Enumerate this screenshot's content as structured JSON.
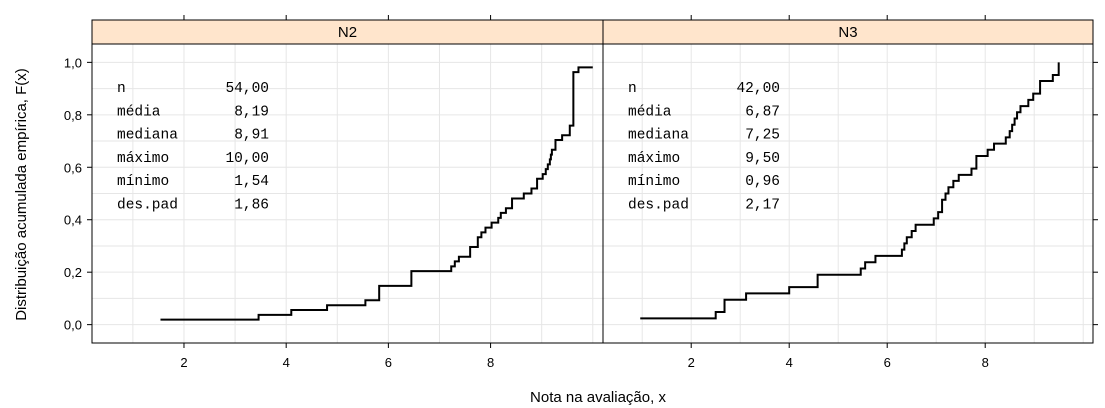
{
  "chart_data": {
    "type": "step",
    "xlabel": "Nota na avaliação, x",
    "ylabel": "Distribuição acumulada empírica, F(x)",
    "xlim": [
      0.2,
      10.2
    ],
    "ylim": [
      -0.07,
      1.07
    ],
    "xticks": [
      2,
      4,
      6,
      8
    ],
    "yticks": [
      0.0,
      0.2,
      0.4,
      0.6,
      0.8,
      1.0
    ],
    "ytick_labels": [
      "0,0",
      "0,2",
      "0,4",
      "0,6",
      "0,8",
      "1,0"
    ],
    "grid": true,
    "panels": [
      {
        "strip": "N2",
        "stats": [
          {
            "label": "n",
            "value": "54,00"
          },
          {
            "label": "média",
            "value": "8,19"
          },
          {
            "label": "mediana",
            "value": "8,91"
          },
          {
            "label": "máximo",
            "value": "10,00"
          },
          {
            "label": "mínimo",
            "value": "1,54"
          },
          {
            "label": "des.pad",
            "value": "1,86"
          }
        ],
        "steps": [
          [
            1.54,
            0.019
          ],
          [
            3.46,
            0.037
          ],
          [
            4.1,
            0.056
          ],
          [
            4.8,
            0.074
          ],
          [
            5.55,
            0.093
          ],
          [
            5.82,
            0.148
          ],
          [
            6.45,
            0.204
          ],
          [
            7.23,
            0.222
          ],
          [
            7.3,
            0.241
          ],
          [
            7.38,
            0.259
          ],
          [
            7.6,
            0.296
          ],
          [
            7.75,
            0.333
          ],
          [
            7.82,
            0.352
          ],
          [
            7.9,
            0.37
          ],
          [
            8.02,
            0.389
          ],
          [
            8.15,
            0.407
          ],
          [
            8.2,
            0.426
          ],
          [
            8.3,
            0.444
          ],
          [
            8.42,
            0.481
          ],
          [
            8.65,
            0.5
          ],
          [
            8.8,
            0.519
          ],
          [
            8.91,
            0.556
          ],
          [
            9.02,
            0.574
          ],
          [
            9.08,
            0.593
          ],
          [
            9.12,
            0.611
          ],
          [
            9.16,
            0.63
          ],
          [
            9.18,
            0.648
          ],
          [
            9.2,
            0.667
          ],
          [
            9.27,
            0.704
          ],
          [
            9.4,
            0.722
          ],
          [
            9.55,
            0.759
          ],
          [
            9.62,
            0.963
          ],
          [
            9.72,
            0.981
          ]
        ],
        "x_end": 10.0
      },
      {
        "strip": "N3",
        "stats": [
          {
            "label": "n",
            "value": "42,00"
          },
          {
            "label": "média",
            "value": "6,87"
          },
          {
            "label": "mediana",
            "value": "7,25"
          },
          {
            "label": "máximo",
            "value": "9,50"
          },
          {
            "label": "mínimo",
            "value": "0,96"
          },
          {
            "label": "des.pad",
            "value": "2,17"
          }
        ],
        "steps": [
          [
            0.96,
            0.024
          ],
          [
            2.5,
            0.048
          ],
          [
            2.68,
            0.095
          ],
          [
            3.12,
            0.119
          ],
          [
            4.0,
            0.143
          ],
          [
            4.58,
            0.19
          ],
          [
            5.46,
            0.214
          ],
          [
            5.55,
            0.238
          ],
          [
            5.76,
            0.262
          ],
          [
            6.3,
            0.286
          ],
          [
            6.35,
            0.31
          ],
          [
            6.4,
            0.333
          ],
          [
            6.5,
            0.357
          ],
          [
            6.58,
            0.381
          ],
          [
            6.95,
            0.405
          ],
          [
            7.04,
            0.429
          ],
          [
            7.12,
            0.476
          ],
          [
            7.19,
            0.5
          ],
          [
            7.25,
            0.524
          ],
          [
            7.35,
            0.548
          ],
          [
            7.46,
            0.571
          ],
          [
            7.72,
            0.595
          ],
          [
            7.82,
            0.643
          ],
          [
            8.05,
            0.667
          ],
          [
            8.18,
            0.69
          ],
          [
            8.42,
            0.714
          ],
          [
            8.5,
            0.738
          ],
          [
            8.55,
            0.762
          ],
          [
            8.6,
            0.786
          ],
          [
            8.65,
            0.81
          ],
          [
            8.72,
            0.833
          ],
          [
            8.88,
            0.857
          ],
          [
            8.98,
            0.881
          ],
          [
            9.12,
            0.929
          ],
          [
            9.38,
            0.952
          ],
          [
            9.5,
            1.0
          ]
        ],
        "x_end": 9.5
      }
    ]
  }
}
